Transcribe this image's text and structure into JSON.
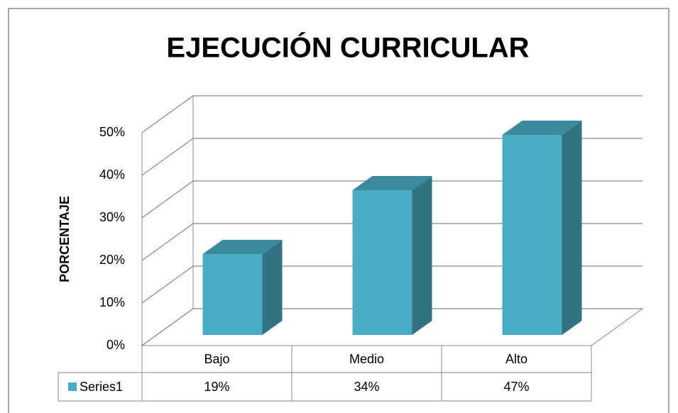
{
  "chart_data": {
    "type": "bar3d",
    "title": "EJECUCIÓN CURRICULAR",
    "y_label": "PORCENTAJE",
    "categories": [
      "Bajo",
      "Medio",
      "Alto"
    ],
    "series": [
      {
        "name": "Series1",
        "color": "#4bacc6",
        "values": [
          19,
          34,
          47
        ],
        "value_labels": [
          "19%",
          "34%",
          "47%"
        ]
      }
    ],
    "ylim": [
      0,
      50
    ],
    "yticks": [
      {
        "value": 0,
        "label": "0%"
      },
      {
        "value": 10,
        "label": "10%"
      },
      {
        "value": 20,
        "label": "20%"
      },
      {
        "value": 30,
        "label": "30%"
      },
      {
        "value": 40,
        "label": "40%"
      },
      {
        "value": 50,
        "label": "50%"
      }
    ],
    "grid": true,
    "data_table": true
  }
}
